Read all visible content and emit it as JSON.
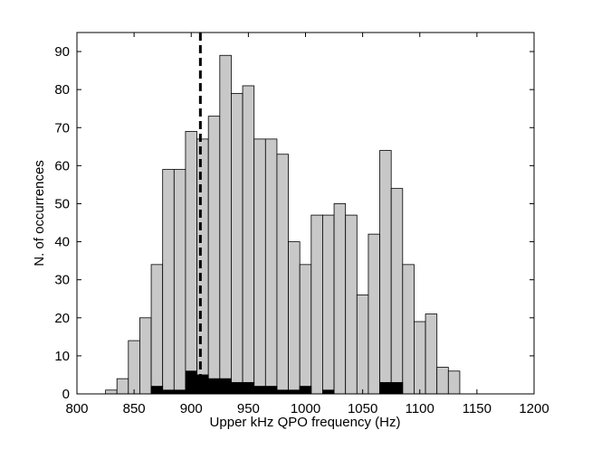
{
  "chart_data": {
    "type": "histogram",
    "xlabel": "Upper kHz QPO frequency (Hz)",
    "ylabel": "N. of occurrences",
    "bins": [
      825,
      835,
      845,
      855,
      865,
      875,
      885,
      895,
      905,
      915,
      925,
      935,
      945,
      955,
      965,
      975,
      985,
      995,
      1005,
      1015,
      1025,
      1035,
      1045,
      1055,
      1065,
      1075,
      1085,
      1095,
      1105,
      1115,
      1125,
      1135
    ],
    "series": [
      {
        "color": "#c8c8c8",
        "values": [
          1,
          4,
          14,
          20,
          34,
          59,
          59,
          69,
          67,
          73,
          89,
          79,
          81,
          67,
          67,
          63,
          40,
          34,
          47,
          47,
          50,
          47,
          26,
          42,
          64,
          54,
          34,
          19,
          21,
          7,
          6
        ]
      },
      {
        "color": "#000000",
        "values": [
          0,
          0,
          0,
          0,
          2,
          1,
          1,
          6,
          5,
          4,
          4,
          3,
          3,
          2,
          2,
          1,
          1,
          2,
          0,
          1,
          0,
          0,
          0,
          0,
          3,
          3,
          0,
          0,
          0,
          0,
          0
        ]
      }
    ],
    "reference_line": 908,
    "xlim": [
      800,
      1200
    ],
    "xticks": [
      800,
      850,
      900,
      950,
      1000,
      1050,
      1100,
      1150,
      1200
    ],
    "ylim": [
      0,
      95
    ],
    "yticks": [
      0,
      10,
      20,
      30,
      40,
      50,
      60,
      70,
      80,
      90
    ]
  }
}
